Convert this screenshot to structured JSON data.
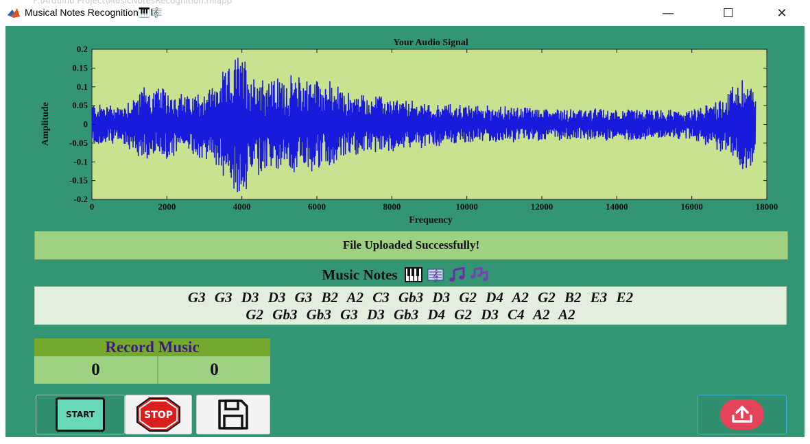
{
  "window": {
    "title": "Musical Notes Recognition🎹🎼",
    "ghost_path": "F:\\Arduino Project\\MusicNotesRecognition.mlapp",
    "minimize": "—",
    "maximize": "☐",
    "close": "✕"
  },
  "chart_data": {
    "type": "line",
    "title": "Your Audio Signal",
    "xlabel": "Frequency",
    "ylabel": "Amplitude",
    "xlim": [
      0,
      18000
    ],
    "ylim": [
      -0.2,
      0.2
    ],
    "xticks": [
      0,
      2000,
      4000,
      6000,
      8000,
      10000,
      12000,
      14000,
      16000,
      18000
    ],
    "yticks": [
      "0.2",
      "0.15",
      "0.1",
      "0.05",
      "0",
      "-0.05",
      "-0.1",
      "-0.15",
      "-0.2"
    ],
    "ytick_values": [
      0.2,
      0.15,
      0.1,
      0.05,
      0,
      -0.05,
      -0.1,
      -0.15,
      -0.2
    ],
    "signal_length": 17700,
    "grid": false,
    "background": "#c9e28f",
    "line_color": "#1a1adc",
    "envelope": {
      "x": [
        0,
        800,
        1400,
        2000,
        2600,
        3200,
        3700,
        3950,
        4100,
        4300,
        4700,
        5200,
        5800,
        6300,
        6900,
        7500,
        8500,
        10000,
        11500,
        13000,
        14500,
        16000,
        16800,
        17100,
        17400,
        17650
      ],
      "amplitude": [
        0.055,
        0.05,
        0.1,
        0.09,
        0.075,
        0.1,
        0.15,
        0.19,
        0.17,
        0.14,
        0.12,
        0.12,
        0.13,
        0.11,
        0.08,
        0.075,
        0.06,
        0.05,
        0.045,
        0.04,
        0.04,
        0.035,
        0.07,
        0.1,
        0.125,
        0.1
      ]
    }
  },
  "status": {
    "message": "File Uploaded Successfully!"
  },
  "notes": {
    "heading": "Music Notes",
    "icons": [
      "piano-icon",
      "sheet-music-icon",
      "music-note-icon",
      "musical-notes-icon"
    ],
    "line1": "G3 G3 D3 D3 G3 B2 A2 C3 Gb3 D3 G2 D4 A2 G2 B2 E3 E2",
    "line2": "G2 Gb3 Gb3 G3 D3 Gb3 D4 G2 D3 C4 A2 A2"
  },
  "record": {
    "title": "Record Music",
    "value_left": "0",
    "value_right": "0"
  },
  "buttons": {
    "start": "START",
    "stop": "STOP",
    "save_icon": "floppy-disk-icon",
    "upload_icon": "upload-icon"
  },
  "colors": {
    "workspace": "#339574",
    "status_bar": "#9ed282",
    "record_header": "#74a92d",
    "record_title_text": "#3d1d7a",
    "upload_button": "#e4435a"
  }
}
